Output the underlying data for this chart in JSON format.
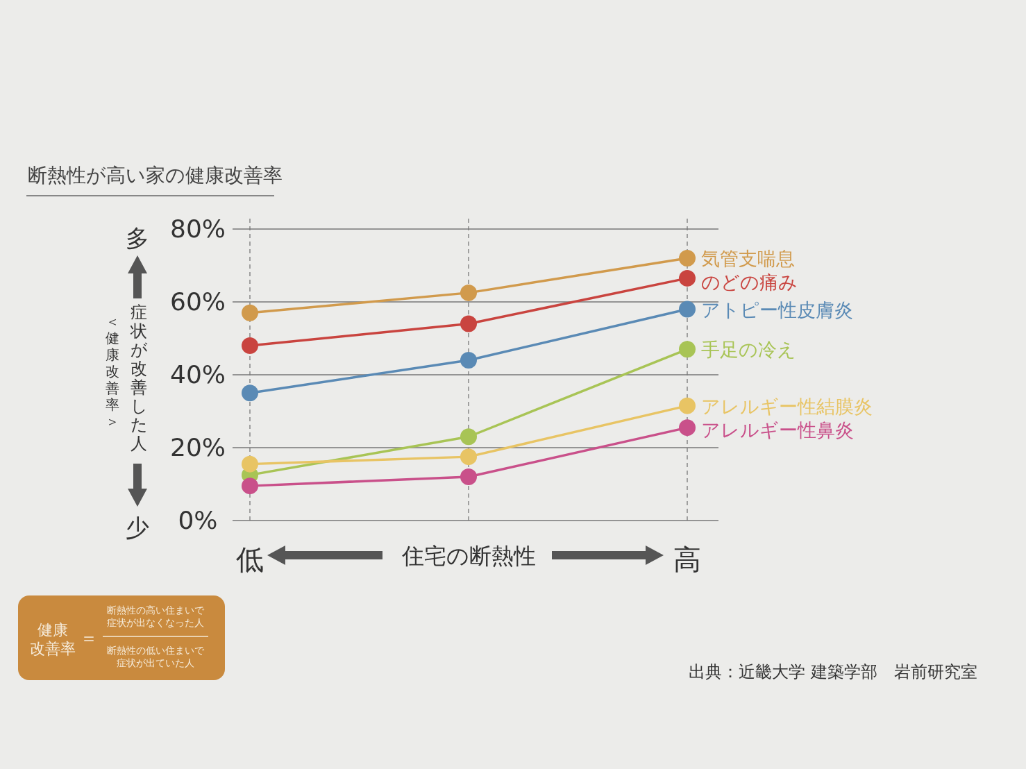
{
  "chart_data": {
    "type": "line",
    "title": "断熱性が高い家の健康改善率",
    "xlabel": "住宅の断熱性",
    "ylabel": "症状が改善した人",
    "categories": [
      "低",
      null,
      "高"
    ],
    "ylim": [
      0,
      80
    ],
    "yticks": [
      {
        "value": 0,
        "label": "0%"
      },
      {
        "value": 20,
        "label": "20%"
      },
      {
        "value": 40,
        "label": "40%"
      },
      {
        "value": 60,
        "label": "60%"
      },
      {
        "value": 80,
        "label": "80%"
      }
    ],
    "grid": true,
    "legend": false,
    "marker": "circle",
    "line_style": "solid",
    "series": [
      {
        "name": "気管支喘息",
        "color": "#d19a4c",
        "values": [
          57,
          62.5,
          72
        ]
      },
      {
        "name": "のどの痛み",
        "color": "#c9443f",
        "values": [
          48,
          54,
          66.5
        ]
      },
      {
        "name": "アトピー性皮膚炎",
        "color": "#5a8ab5",
        "values": [
          35,
          44,
          58
        ]
      },
      {
        "name": "手足の冷え",
        "color": "#a8c455",
        "values": [
          12.5,
          23,
          47
        ]
      },
      {
        "name": "アレルギー性結膜炎",
        "color": "#e8c464",
        "values": [
          15.5,
          17.5,
          31.5
        ]
      },
      {
        "name": "アレルギー性鼻炎",
        "color": "#c9508a",
        "values": [
          9.5,
          12,
          25.5
        ]
      }
    ],
    "annotations": [
      "多",
      "少",
      "＜健康改善率＞",
      "健康改善率",
      "＝",
      "断熱性の高い住まいで症状が出なくなった人",
      "断熱性の低い住まいで症状が出ていた人",
      "出典：近畿大学 建築学部　岩前研究室"
    ]
  }
}
